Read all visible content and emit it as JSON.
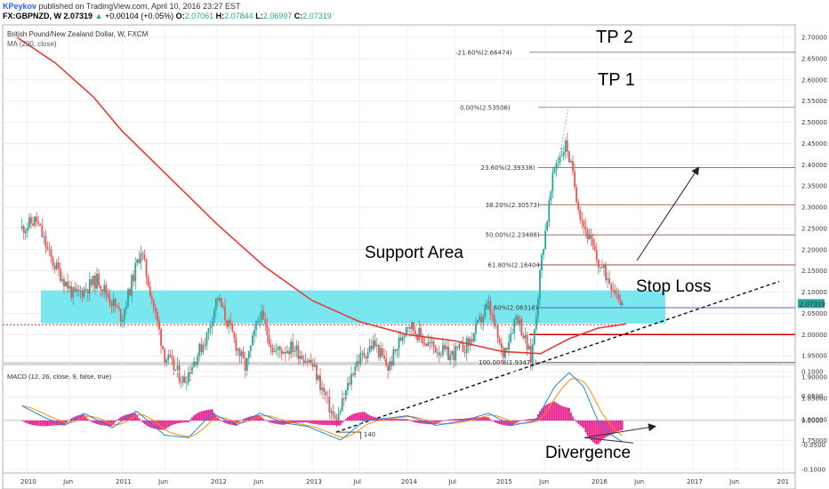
{
  "header": {
    "author": "KPeykov",
    "published": "published on TradingView.com, April 10, 2016 23:27 EST",
    "symbol": "FX:GBPNZD, W",
    "last": "2.07319",
    "change": "+0.00104 (+0.05%)",
    "o_label": "O:",
    "o": "2.07061",
    "h_label": "H:",
    "h": "2.07844",
    "l_label": "L:",
    "l": "2.06997",
    "c_label": "C:",
    "c": "2.07319"
  },
  "colors": {
    "up": "#26a69a",
    "down": "#ef5350",
    "ma": "#e53935",
    "support_zone": "#63e3ec",
    "macd_line": "#1e88e5",
    "signal_line": "#fb8c00",
    "hist": "#e91e8c",
    "fib_blue": "#3f51b5",
    "fib_brown": "#8d3b2d",
    "fib_gray": "#777777"
  },
  "chart_data": [
    {
      "type": "candlestick",
      "title": "British Pound/New Zealand Dollar, W, FXCM",
      "indicator": "MA (200, close)",
      "x_ticks": [
        "2010",
        "Jun",
        "2011",
        "Jun",
        "2012",
        "Jun",
        "2013",
        "Jul",
        "2014",
        "Jul",
        "2015",
        "Jun",
        "2016",
        "Jun",
        "2017",
        "Jun",
        "201"
      ],
      "y_ticks": [
        "2.70000",
        "2.65000",
        "2.60000",
        "2.55000",
        "2.50000",
        "2.45000",
        "2.40000",
        "2.35000",
        "2.30000",
        "2.25000",
        "2.20000",
        "2.15000",
        "2.10000",
        "2.05000",
        "2.00000",
        "1.95000",
        "1.90000",
        "1.85000",
        "1.80000",
        "1.75000"
      ],
      "ylim": [
        1.73,
        2.72
      ],
      "last_price": "2.07319",
      "price_path": [
        {
          "t": 2009.95,
          "p": 2.25
        },
        {
          "t": 2010.1,
          "p": 2.27
        },
        {
          "t": 2010.25,
          "p": 2.18
        },
        {
          "t": 2010.5,
          "p": 2.09
        },
        {
          "t": 2010.75,
          "p": 2.13
        },
        {
          "t": 2011.0,
          "p": 2.04
        },
        {
          "t": 2011.2,
          "p": 2.2
        },
        {
          "t": 2011.45,
          "p": 1.95
        },
        {
          "t": 2011.65,
          "p": 1.89
        },
        {
          "t": 2011.9,
          "p": 2.0
        },
        {
          "t": 2012.0,
          "p": 2.09
        },
        {
          "t": 2012.3,
          "p": 1.92
        },
        {
          "t": 2012.45,
          "p": 2.05
        },
        {
          "t": 2012.6,
          "p": 1.96
        },
        {
          "t": 2012.8,
          "p": 1.97
        },
        {
          "t": 2013.0,
          "p": 1.93
        },
        {
          "t": 2013.25,
          "p": 1.79
        },
        {
          "t": 2013.45,
          "p": 1.93
        },
        {
          "t": 2013.65,
          "p": 1.98
        },
        {
          "t": 2013.8,
          "p": 1.92
        },
        {
          "t": 2014.0,
          "p": 2.03
        },
        {
          "t": 2014.2,
          "p": 1.98
        },
        {
          "t": 2014.45,
          "p": 1.95
        },
        {
          "t": 2014.65,
          "p": 1.98
        },
        {
          "t": 2014.85,
          "p": 2.07
        },
        {
          "t": 2015.0,
          "p": 1.95
        },
        {
          "t": 2015.15,
          "p": 2.05
        },
        {
          "t": 2015.3,
          "p": 1.94
        },
        {
          "t": 2015.42,
          "p": 2.2
        },
        {
          "t": 2015.55,
          "p": 2.4
        },
        {
          "t": 2015.67,
          "p": 2.45
        },
        {
          "t": 2015.82,
          "p": 2.28
        },
        {
          "t": 2016.0,
          "p": 2.17
        },
        {
          "t": 2016.15,
          "p": 2.12
        },
        {
          "t": 2016.27,
          "p": 2.07
        }
      ],
      "ma_path": [
        {
          "t": 2009.9,
          "p": 2.7
        },
        {
          "t": 2010.3,
          "p": 2.64
        },
        {
          "t": 2010.7,
          "p": 2.56
        },
        {
          "t": 2011.0,
          "p": 2.48
        },
        {
          "t": 2011.5,
          "p": 2.37
        },
        {
          "t": 2012.0,
          "p": 2.26
        },
        {
          "t": 2012.5,
          "p": 2.16
        },
        {
          "t": 2013.0,
          "p": 2.08
        },
        {
          "t": 2013.5,
          "p": 2.03
        },
        {
          "t": 2014.0,
          "p": 2.0
        },
        {
          "t": 2014.5,
          "p": 1.985
        },
        {
          "t": 2015.0,
          "p": 1.96
        },
        {
          "t": 2015.4,
          "p": 1.955
        },
        {
          "t": 2015.7,
          "p": 1.99
        },
        {
          "t": 2016.0,
          "p": 2.015
        },
        {
          "t": 2016.3,
          "p": 2.025
        }
      ],
      "fib_levels": [
        {
          "label": "-21.60%(2.66474)",
          "price": 2.66474
        },
        {
          "label": "0.00%(2.53506)",
          "price": 2.53506
        },
        {
          "label": "23.60%(2.39338)",
          "price": 2.39338
        },
        {
          "label": "38.20%(2.30573)",
          "price": 2.30573
        },
        {
          "label": "50.00%(2.23488)",
          "price": 2.23488
        },
        {
          "label": "61.80%(2.16404)",
          "price": 2.16404
        },
        {
          "label": "78.60%(2.06318)",
          "price": 2.06318
        },
        {
          "label": "100.00%(1.93471)",
          "price": 1.93471
        }
      ],
      "support_zone": [
        2.026,
        2.104
      ],
      "stop_loss_price": 2.0,
      "annotations": {
        "tp2": "TP 2",
        "tp1": "TP 1",
        "support": "Support Area",
        "stop_loss": "Stop Loss",
        "bars": "140"
      }
    },
    {
      "type": "histogram+line",
      "title": "MACD (12, 26, close, 9, false, true)",
      "y_ticks": [
        "0.1000",
        "0.0500",
        "0.0000",
        "-0.0500",
        "-0.1000"
      ],
      "ylim": [
        -0.11,
        0.11
      ],
      "macd_path": [
        {
          "t": 2009.95,
          "v": 0.03
        },
        {
          "t": 2010.2,
          "v": 0.005
        },
        {
          "t": 2010.4,
          "v": -0.01
        },
        {
          "t": 2010.6,
          "v": 0.015
        },
        {
          "t": 2010.9,
          "v": -0.015
        },
        {
          "t": 2011.15,
          "v": 0.02
        },
        {
          "t": 2011.45,
          "v": -0.03
        },
        {
          "t": 2011.7,
          "v": -0.035
        },
        {
          "t": 2011.95,
          "v": 0.015
        },
        {
          "t": 2012.2,
          "v": -0.01
        },
        {
          "t": 2012.45,
          "v": 0.015
        },
        {
          "t": 2012.7,
          "v": -0.005
        },
        {
          "t": 2012.95,
          "v": -0.012
        },
        {
          "t": 2013.3,
          "v": -0.04
        },
        {
          "t": 2013.55,
          "v": 0.0
        },
        {
          "t": 2013.8,
          "v": 0.005
        },
        {
          "t": 2014.0,
          "v": 0.01
        },
        {
          "t": 2014.3,
          "v": -0.01
        },
        {
          "t": 2014.6,
          "v": 0.0
        },
        {
          "t": 2014.85,
          "v": 0.015
        },
        {
          "t": 2015.1,
          "v": -0.01
        },
        {
          "t": 2015.35,
          "v": 0.0
        },
        {
          "t": 2015.55,
          "v": 0.07
        },
        {
          "t": 2015.7,
          "v": 0.098
        },
        {
          "t": 2015.85,
          "v": 0.07
        },
        {
          "t": 2016.0,
          "v": 0.0
        },
        {
          "t": 2016.15,
          "v": -0.03
        },
        {
          "t": 2016.27,
          "v": -0.045
        }
      ],
      "divergence_label": "Divergence"
    }
  ]
}
